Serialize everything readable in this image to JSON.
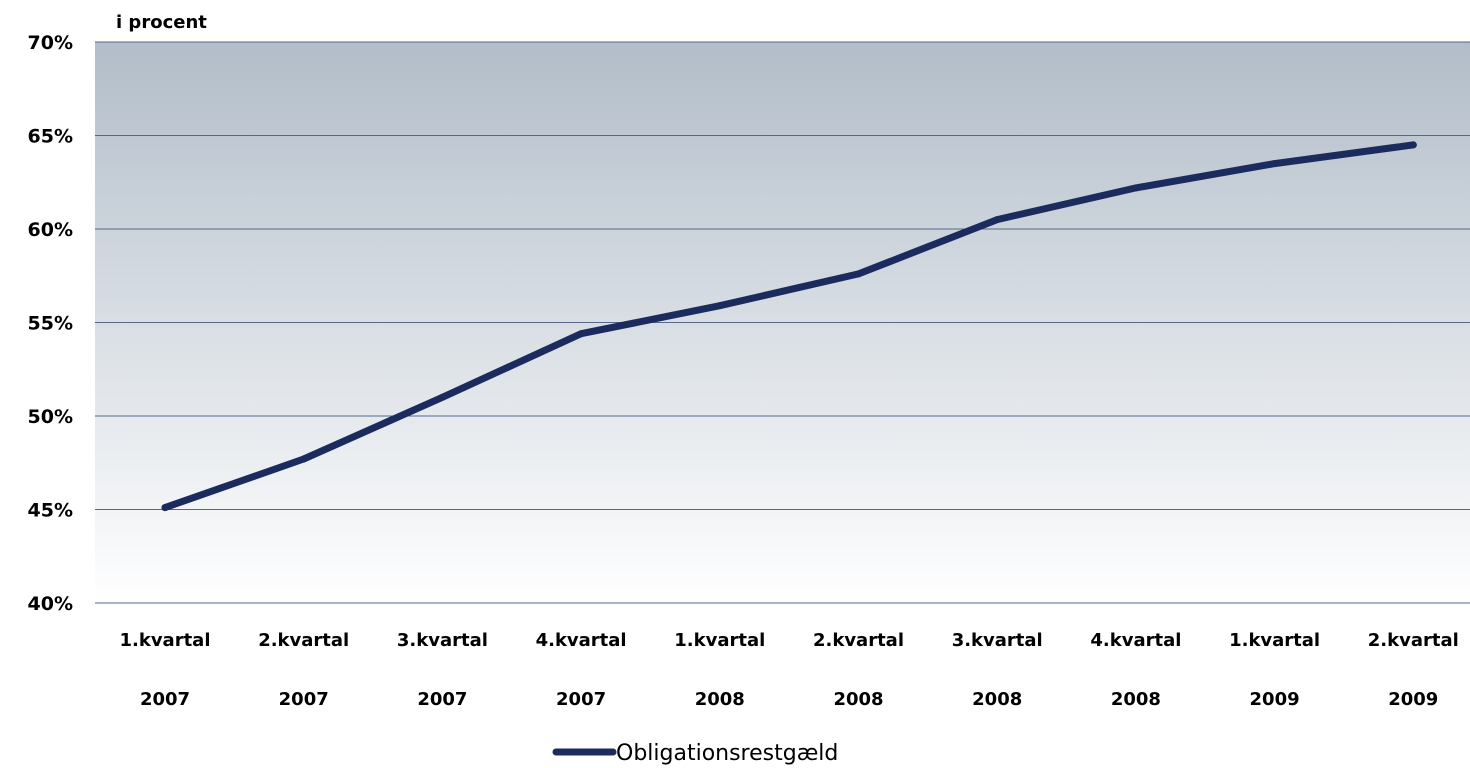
{
  "chart_data": {
    "type": "line",
    "unit_label": "i procent",
    "categories": [
      [
        "1.kvartal",
        "2007"
      ],
      [
        "2.kvartal",
        "2007"
      ],
      [
        "3.kvartal",
        "2007"
      ],
      [
        "4.kvartal",
        "2007"
      ],
      [
        "1.kvartal",
        "2008"
      ],
      [
        "2.kvartal",
        "2008"
      ],
      [
        "3.kvartal",
        "2008"
      ],
      [
        "4.kvartal",
        "2008"
      ],
      [
        "1.kvartal",
        "2009"
      ],
      [
        "2.kvartal",
        "2009"
      ]
    ],
    "series": [
      {
        "name": "Obligationsrestgæld",
        "color": "#1c2b5e",
        "values": [
          45.1,
          47.7,
          51.0,
          54.4,
          55.9,
          57.6,
          60.5,
          62.2,
          63.5,
          64.5
        ]
      }
    ],
    "y_ticks": [
      "40%",
      "45%",
      "50%",
      "55%",
      "60%",
      "65%",
      "70%"
    ],
    "y_tick_values": [
      40,
      45,
      50,
      55,
      60,
      65,
      70
    ],
    "ylim": [
      40,
      70
    ],
    "grid": true,
    "legend_position": "bottom",
    "colors": {
      "plot_gradient_top": "#b2bdc9",
      "plot_gradient_bottom": "#ffffff",
      "gridline": "#56698a",
      "line": "#1c2b5e"
    }
  }
}
